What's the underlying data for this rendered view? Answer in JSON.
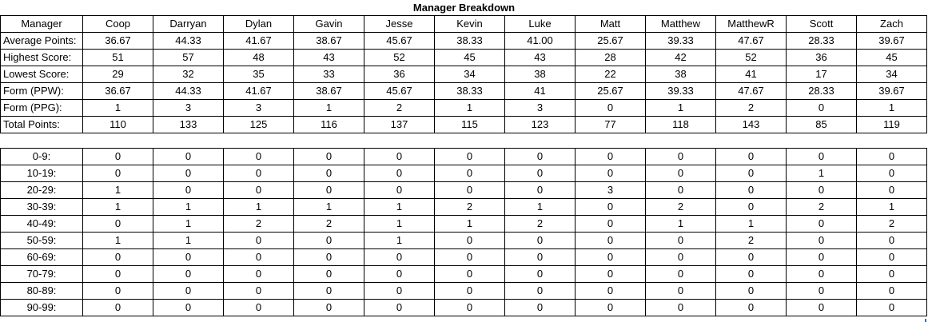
{
  "title": "Manager Breakdown",
  "header_label": "Manager",
  "managers": [
    "Coop",
    "Darryan",
    "Dylan",
    "Gavin",
    "Jesse",
    "Kevin",
    "Luke",
    "Matt",
    "Matthew",
    "MatthewR",
    "Scott",
    "Zach"
  ],
  "summary_rows": [
    {
      "label": "Average Points:",
      "values": [
        "36.67",
        "44.33",
        "41.67",
        "38.67",
        "45.67",
        "38.33",
        "41.00",
        "25.67",
        "39.33",
        "47.67",
        "28.33",
        "39.67"
      ]
    },
    {
      "label": "Highest Score:",
      "values": [
        "51",
        "57",
        "48",
        "43",
        "52",
        "45",
        "43",
        "28",
        "42",
        "52",
        "36",
        "45"
      ]
    },
    {
      "label": "Lowest Score:",
      "values": [
        "29",
        "32",
        "35",
        "33",
        "36",
        "34",
        "38",
        "22",
        "38",
        "41",
        "17",
        "34"
      ]
    },
    {
      "label": "Form (PPW):",
      "values": [
        "36.67",
        "44.33",
        "41.67",
        "38.67",
        "45.67",
        "38.33",
        "41",
        "25.67",
        "39.33",
        "47.67",
        "28.33",
        "39.67"
      ]
    },
    {
      "label": "Form (PPG):",
      "values": [
        "1",
        "3",
        "3",
        "1",
        "2",
        "1",
        "3",
        "0",
        "1",
        "2",
        "0",
        "1"
      ]
    },
    {
      "label": "Total Points:",
      "values": [
        "110",
        "133",
        "125",
        "116",
        "137",
        "115",
        "123",
        "77",
        "118",
        "143",
        "85",
        "119"
      ]
    }
  ],
  "bucket_rows": [
    {
      "label": "0-9:",
      "values": [
        "0",
        "0",
        "0",
        "0",
        "0",
        "0",
        "0",
        "0",
        "0",
        "0",
        "0",
        "0"
      ]
    },
    {
      "label": "10-19:",
      "values": [
        "0",
        "0",
        "0",
        "0",
        "0",
        "0",
        "0",
        "0",
        "0",
        "0",
        "1",
        "0"
      ]
    },
    {
      "label": "20-29:",
      "values": [
        "1",
        "0",
        "0",
        "0",
        "0",
        "0",
        "0",
        "3",
        "0",
        "0",
        "0",
        "0"
      ]
    },
    {
      "label": "30-39:",
      "values": [
        "1",
        "1",
        "1",
        "1",
        "1",
        "2",
        "1",
        "0",
        "2",
        "0",
        "2",
        "1"
      ]
    },
    {
      "label": "40-49:",
      "values": [
        "0",
        "1",
        "2",
        "2",
        "1",
        "1",
        "2",
        "0",
        "1",
        "1",
        "0",
        "2"
      ]
    },
    {
      "label": "50-59:",
      "values": [
        "1",
        "1",
        "0",
        "0",
        "1",
        "0",
        "0",
        "0",
        "0",
        "2",
        "0",
        "0"
      ]
    },
    {
      "label": "60-69:",
      "values": [
        "0",
        "0",
        "0",
        "0",
        "0",
        "0",
        "0",
        "0",
        "0",
        "0",
        "0",
        "0"
      ]
    },
    {
      "label": "70-79:",
      "values": [
        "0",
        "0",
        "0",
        "0",
        "0",
        "0",
        "0",
        "0",
        "0",
        "0",
        "0",
        "0"
      ]
    },
    {
      "label": "80-89:",
      "values": [
        "0",
        "0",
        "0",
        "0",
        "0",
        "0",
        "0",
        "0",
        "0",
        "0",
        "0",
        "0"
      ]
    },
    {
      "label": "90-99:",
      "values": [
        "0",
        "0",
        "0",
        "0",
        "0",
        "0",
        "0",
        "0",
        "0",
        "0",
        "0",
        "0"
      ]
    }
  ]
}
